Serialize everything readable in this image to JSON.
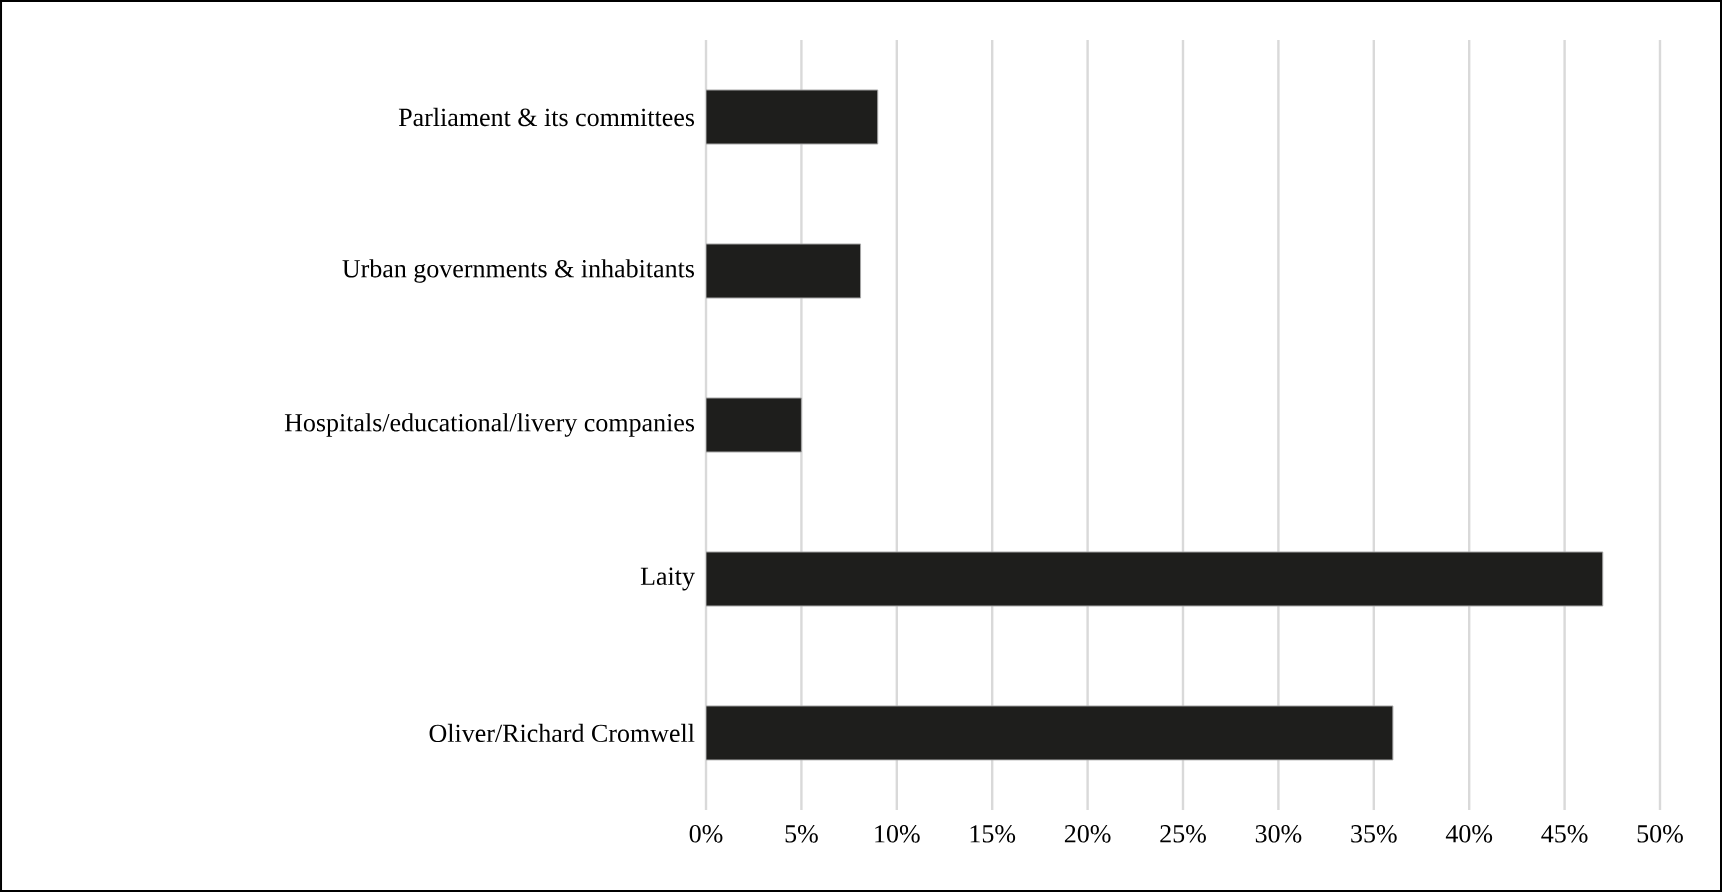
{
  "chart_data": {
    "type": "bar",
    "orientation": "horizontal",
    "categories": [
      "Parliament & its committees",
      "Urban governments & inhabitants",
      "Hospitals/educational/livery companies",
      "Laity",
      "Oliver/Richard Cromwell"
    ],
    "values": [
      9,
      8.1,
      5,
      47,
      36
    ],
    "color": "#1e1e1c",
    "xlim": [
      0,
      50
    ],
    "xticks": [
      {
        "value": 0,
        "label": "0%"
      },
      {
        "value": 5,
        "label": "5%"
      },
      {
        "value": 10,
        "label": "10%"
      },
      {
        "value": 15,
        "label": "15%"
      },
      {
        "value": 20,
        "label": "20%"
      },
      {
        "value": 25,
        "label": "25%"
      },
      {
        "value": 30,
        "label": "30%"
      },
      {
        "value": 35,
        "label": "35%"
      },
      {
        "value": 40,
        "label": "40%"
      },
      {
        "value": 45,
        "label": "45%"
      },
      {
        "value": 50,
        "label": "50%"
      }
    ],
    "grid": "x"
  }
}
